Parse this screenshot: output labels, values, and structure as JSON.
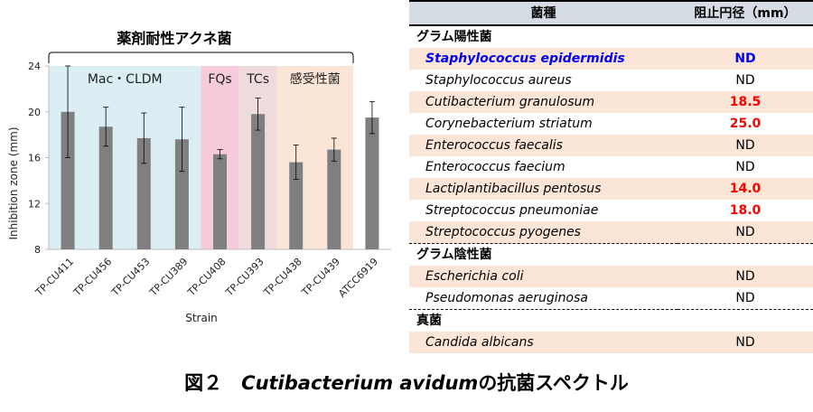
{
  "chart_data": {
    "type": "bar",
    "title": "薬剤耐性アクネ菌",
    "xlabel": "Strain",
    "ylabel": "Inhibition zone (mm)",
    "ylim": [
      8,
      24
    ],
    "yticks": [
      8,
      12,
      16,
      20,
      24
    ],
    "categories": [
      "TP-CU411",
      "TP-CU456",
      "TP-CU453",
      "TP-CU389",
      "TP-CU408",
      "TP-CU393",
      "TP-CU438",
      "TP-CU439",
      "ATCC6919"
    ],
    "values": [
      20.0,
      18.7,
      17.7,
      17.6,
      16.3,
      19.8,
      15.6,
      16.7,
      19.5
    ],
    "errors": [
      4.0,
      1.7,
      2.2,
      2.8,
      0.4,
      1.4,
      1.5,
      1.0,
      1.4
    ],
    "bar_color": "#7f7f7f",
    "groups": [
      {
        "label": "Mac・CLDM",
        "from": 0,
        "to": 3,
        "color": "#daeef3"
      },
      {
        "label": "FQs",
        "from": 4,
        "to": 4,
        "color": "#f8cbdc"
      },
      {
        "label": "TCs",
        "from": 5,
        "to": 5,
        "color": "#eedcdc"
      },
      {
        "label": "感受性菌",
        "from": 6,
        "to": 7,
        "color": "#fbe5d6"
      }
    ]
  },
  "table": {
    "header": {
      "organism": "菌種",
      "value": "阻止円径（mm）"
    },
    "rows": [
      {
        "kind": "group",
        "label": "グラム陽性菌"
      },
      {
        "kind": "item",
        "name": "Staphylococcus epidermidis",
        "value": "ND",
        "style": "highlight",
        "shaded": true
      },
      {
        "kind": "item",
        "name": "Staphylococcus aureus",
        "value": "ND",
        "style": "normal",
        "shaded": false
      },
      {
        "kind": "item",
        "name": "Cutibacterium granulosum",
        "value": "18.5",
        "style": "positive",
        "shaded": true
      },
      {
        "kind": "item",
        "name": "Corynebacterium striatum",
        "value": "25.0",
        "style": "positive",
        "shaded": false
      },
      {
        "kind": "item",
        "name": "Enterococcus faecalis",
        "value": "ND",
        "style": "normal",
        "shaded": true
      },
      {
        "kind": "item",
        "name": "Enterococcus faecium",
        "value": "ND",
        "style": "normal",
        "shaded": false
      },
      {
        "kind": "item",
        "name": "Lactiplantibacillus pentosus",
        "value": "14.0",
        "style": "positive",
        "shaded": true
      },
      {
        "kind": "item",
        "name": "Streptococcus pneumoniae",
        "value": "18.0",
        "style": "positive",
        "shaded": false
      },
      {
        "kind": "item",
        "name": "Streptococcus pyogenes",
        "value": "ND",
        "style": "normal",
        "shaded": true
      },
      {
        "kind": "group",
        "label": "グラム陰性菌",
        "dashed": true
      },
      {
        "kind": "item",
        "name": "Escherichia coli",
        "value": "ND",
        "style": "normal",
        "shaded": true
      },
      {
        "kind": "item",
        "name": "Pseudomonas aeruginosa",
        "value": "ND",
        "style": "normal",
        "shaded": false
      },
      {
        "kind": "group",
        "label": "真菌",
        "dashed": true
      },
      {
        "kind": "item",
        "name": "Candida albicans",
        "value": "ND",
        "style": "normal",
        "shaded": true
      }
    ]
  },
  "caption": {
    "prefix": "図２",
    "species": "Cutibacterium avidum",
    "suffix": "の抗菌スペクトル"
  }
}
